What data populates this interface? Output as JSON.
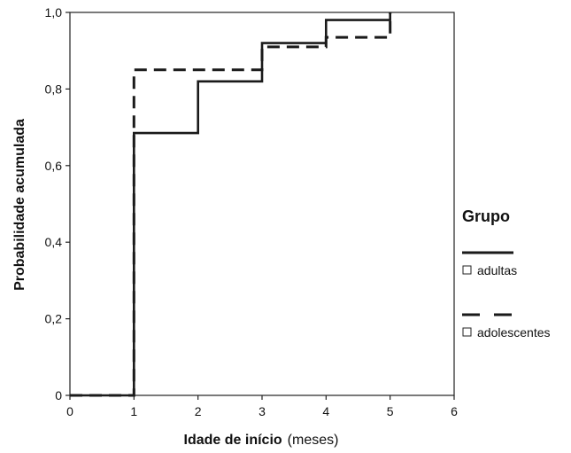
{
  "chart_data": {
    "type": "line",
    "step": true,
    "xlabel_bold": "Idade de início",
    "xlabel_unit": "(meses)",
    "ylabel": "Probabilidade  acumulada",
    "xlim": [
      0,
      6
    ],
    "ylim": [
      0,
      1
    ],
    "x_ticks": [
      "0",
      "1",
      "2",
      "3",
      "4",
      "5",
      "6"
    ],
    "y_ticks": [
      "0",
      "0,2",
      "0,4",
      "0,6",
      "0,8",
      "1,0"
    ],
    "grid": false,
    "legend": {
      "title": "Grupo",
      "position": "right"
    },
    "series": [
      {
        "name": "adultas",
        "line_style": "solid",
        "color": "#1a1a1a",
        "points": [
          [
            0,
            0
          ],
          [
            1,
            0
          ],
          [
            1,
            0.685
          ],
          [
            2,
            0.685
          ],
          [
            2,
            0.82
          ],
          [
            3,
            0.82
          ],
          [
            3,
            0.92
          ],
          [
            4,
            0.92
          ],
          [
            4,
            0.98
          ],
          [
            5,
            0.98
          ],
          [
            5,
            1.0
          ]
        ]
      },
      {
        "name": "adolescentes",
        "line_style": "dashed",
        "color": "#1a1a1a",
        "points": [
          [
            0,
            0
          ],
          [
            1,
            0
          ],
          [
            1,
            0.85
          ],
          [
            3,
            0.85
          ],
          [
            3,
            0.91
          ],
          [
            4,
            0.91
          ],
          [
            4,
            0.935
          ],
          [
            5,
            0.935
          ],
          [
            5,
            1.0
          ]
        ]
      }
    ]
  }
}
